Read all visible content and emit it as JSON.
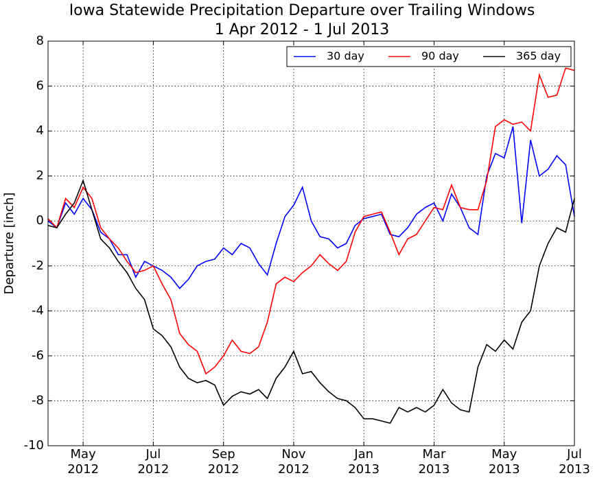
{
  "chart_data": {
    "type": "line",
    "title": "Iowa Statewide Precipitation Departure over Trailing Windows",
    "subtitle": "1 Apr 2012 - 1 Jul 2013",
    "y_label": "Departure [inch]",
    "categories": [
      null,
      null,
      null,
      null,
      "May\n2012",
      null,
      null,
      null,
      null,
      null,
      null,
      null,
      "Jul\n2012",
      null,
      null,
      null,
      null,
      null,
      null,
      null,
      "Sep\n2012",
      null,
      null,
      null,
      null,
      null,
      null,
      null,
      "Nov\n2012",
      null,
      null,
      null,
      null,
      null,
      null,
      null,
      "Jan\n2013",
      null,
      null,
      null,
      null,
      null,
      null,
      null,
      "Mar\n2013",
      null,
      null,
      null,
      null,
      null,
      null,
      null,
      "May\n2013",
      null,
      null,
      null,
      null,
      null,
      null,
      null,
      "Jul\n2013"
    ],
    "series": [
      {
        "name": "30 day",
        "color": "#0000ff",
        "values": [
          0,
          -0.3,
          0.8,
          0.3,
          1.0,
          0.5,
          -0.5,
          -0.8,
          -1.5,
          -1.5,
          -2.5,
          -1.8,
          -2.0,
          -2.2,
          -2.5,
          -3.0,
          -2.6,
          -2.0,
          -1.8,
          -1.7,
          -1.2,
          -1.5,
          -1.0,
          -1.2,
          -1.9,
          -2.4,
          -1.0,
          0.2,
          0.7,
          1.5,
          0.0,
          -0.7,
          -0.8,
          -1.2,
          -1.0,
          -0.2,
          0.1,
          0.2,
          0.3,
          -0.6,
          -0.7,
          -0.3,
          0.3,
          0.6,
          0.8,
          0.0,
          1.2,
          0.6,
          -0.3,
          -0.6,
          2.0,
          3.0,
          2.8,
          4.2,
          -0.1,
          3.6,
          2.0,
          2.3,
          2.9,
          2.5,
          0.2
        ]
      },
      {
        "name": "90 day",
        "color": "#ff0000",
        "values": [
          0.1,
          -0.3,
          1.0,
          0.6,
          1.5,
          1.0,
          -0.3,
          -0.8,
          -1.2,
          -1.8,
          -2.3,
          -2.2,
          -2.0,
          -2.8,
          -3.5,
          -5.0,
          -5.5,
          -5.8,
          -6.8,
          -6.5,
          -6.0,
          -5.3,
          -5.8,
          -5.9,
          -5.6,
          -4.5,
          -2.8,
          -2.5,
          -2.7,
          -2.3,
          -2.0,
          -1.5,
          -1.9,
          -2.2,
          -1.8,
          -0.5,
          0.2,
          0.3,
          0.4,
          -0.5,
          -1.5,
          -0.8,
          -0.6,
          0.0,
          0.6,
          0.5,
          1.6,
          0.6,
          0.5,
          0.5,
          1.8,
          4.2,
          4.5,
          4.3,
          4.4,
          4.0,
          6.5,
          5.5,
          5.6,
          6.8,
          6.7
        ]
      },
      {
        "name": "365 day",
        "color": "#000000",
        "values": [
          -0.2,
          -0.3,
          0.3,
          0.8,
          1.8,
          0.5,
          -0.8,
          -1.2,
          -1.8,
          -2.3,
          -3.0,
          -3.5,
          -4.8,
          -5.1,
          -5.6,
          -6.5,
          -7.0,
          -7.2,
          -7.1,
          -7.3,
          -8.2,
          -7.8,
          -7.6,
          -7.7,
          -7.5,
          -7.9,
          -7.0,
          -6.5,
          -5.8,
          -6.8,
          -6.7,
          -7.2,
          -7.6,
          -7.9,
          -8.0,
          -8.3,
          -8.8,
          -8.8,
          -8.9,
          -9.0,
          -8.3,
          -8.5,
          -8.3,
          -8.5,
          -8.2,
          -7.5,
          -8.1,
          -8.4,
          -8.5,
          -6.5,
          -5.5,
          -5.8,
          -5.3,
          -5.7,
          -4.5,
          -4.0,
          -2.0,
          -1.0,
          -0.3,
          -0.5,
          1.0
        ]
      }
    ],
    "ylim": [
      -10,
      8
    ],
    "yticks": [
      -10,
      -8,
      -6,
      -4,
      -2,
      0,
      2,
      4,
      6,
      8
    ],
    "grid": true,
    "legend": "upper right"
  }
}
